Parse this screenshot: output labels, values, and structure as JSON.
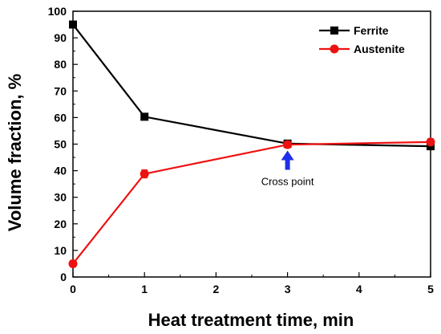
{
  "chart_data": {
    "type": "line",
    "xlabel": "Heat treatment time, min",
    "ylabel": "Volume fraction, %",
    "xlim": [
      0,
      5
    ],
    "ylim": [
      0,
      100
    ],
    "xticks": [
      0,
      1,
      2,
      3,
      4,
      5
    ],
    "yticks": [
      0,
      10,
      20,
      30,
      40,
      50,
      60,
      70,
      80,
      90,
      100
    ],
    "grid": false,
    "legend_position": "top-right",
    "series": [
      {
        "name": "Ferrite",
        "color": "#000000",
        "marker": "square",
        "x": [
          0,
          1,
          3,
          5
        ],
        "y": [
          95,
          60.3,
          50.2,
          49.2
        ],
        "err": [
          1.2,
          1.2,
          1.2,
          1.2
        ]
      },
      {
        "name": "Austenite",
        "color": "#ee1111",
        "marker": "circle",
        "x": [
          0,
          1,
          3,
          5
        ],
        "y": [
          5,
          38.8,
          49.8,
          50.8
        ],
        "err": [
          1.2,
          1.5,
          1.2,
          1.2
        ]
      }
    ],
    "annotations": [
      {
        "text": "Cross point",
        "x": 3,
        "y": 50,
        "arrow_color": "#1f2fe8"
      }
    ]
  }
}
